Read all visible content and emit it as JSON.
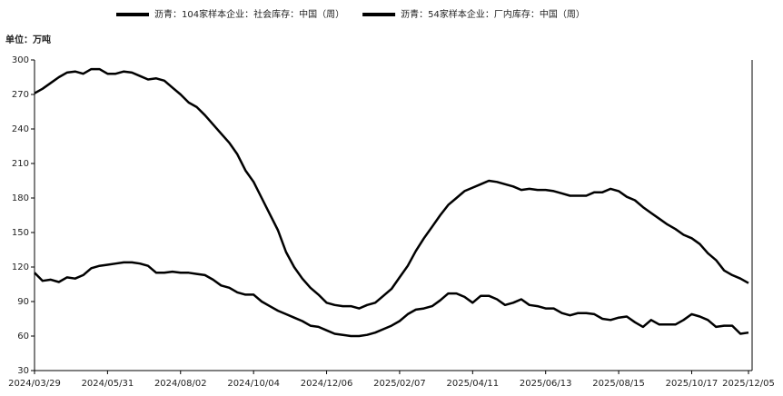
{
  "chart_data": {
    "type": "line",
    "unit": "单位：万吨",
    "categories": [
      "2024/03/29",
      null,
      null,
      null,
      null,
      null,
      null,
      null,
      null,
      "2024/05/31",
      null,
      null,
      null,
      null,
      null,
      null,
      null,
      null,
      "2024/08/02",
      null,
      null,
      null,
      null,
      null,
      null,
      null,
      null,
      "2024/10/04",
      null,
      null,
      null,
      null,
      null,
      null,
      null,
      null,
      "2024/12/06",
      null,
      null,
      null,
      null,
      null,
      null,
      null,
      null,
      "2025/02/07",
      null,
      null,
      null,
      null,
      null,
      null,
      null,
      null,
      "2025/04/11",
      null,
      null,
      null,
      null,
      null,
      null,
      null,
      null,
      "2025/06/13",
      null,
      null,
      null,
      null,
      null,
      null,
      null,
      null,
      "2025/08/15",
      null,
      null,
      null,
      null,
      null,
      null,
      null,
      null,
      "2025/10/17",
      null,
      null,
      null,
      null,
      null,
      null,
      "2025/12/05"
    ],
    "series": [
      {
        "name": "沥青：104家样本企业：社会库存：中国（周）",
        "color": "#000000",
        "values": [
          271,
          275,
          280,
          285,
          289,
          290,
          288,
          292,
          292,
          288,
          288,
          290,
          289,
          286,
          283,
          284,
          282,
          276,
          270,
          263,
          259,
          252,
          244,
          236,
          228,
          218,
          204,
          194,
          180,
          166,
          152,
          133,
          120,
          110,
          102,
          96,
          89,
          87,
          86,
          86,
          84,
          87,
          89,
          95,
          101,
          111,
          121,
          134,
          145,
          155,
          165,
          174,
          180,
          186,
          189,
          192,
          195,
          194,
          192,
          190,
          187,
          188,
          187,
          187,
          186,
          184,
          182,
          182,
          182,
          185,
          185,
          188,
          186,
          181,
          178,
          172,
          167,
          162,
          157,
          153,
          148,
          145,
          140,
          132,
          126,
          117,
          113,
          110,
          106
        ]
      },
      {
        "name": "沥青：54家样本企业：厂内库存：中国（周）",
        "color": "#000000",
        "values": [
          115,
          108,
          109,
          107,
          111,
          110,
          113,
          119,
          121,
          122,
          123,
          124,
          124,
          123,
          121,
          115,
          115,
          116,
          115,
          115,
          114,
          113,
          109,
          104,
          102,
          98,
          96,
          96,
          90,
          86,
          82,
          79,
          76,
          73,
          69,
          68,
          65,
          62,
          61,
          60,
          60,
          61,
          63,
          66,
          69,
          73,
          79,
          83,
          84,
          86,
          91,
          97,
          97,
          94,
          89,
          95,
          95,
          92,
          87,
          89,
          92,
          87,
          86,
          84,
          84,
          80,
          78,
          80,
          80,
          79,
          75,
          74,
          76,
          77,
          72,
          68,
          74,
          70,
          70,
          70,
          74,
          79,
          77,
          74,
          68,
          69,
          69,
          62,
          63
        ]
      }
    ],
    "ylim": [
      30,
      300
    ],
    "yticks": [
      30,
      60,
      90,
      120,
      150,
      180,
      210,
      240,
      270,
      300
    ]
  }
}
